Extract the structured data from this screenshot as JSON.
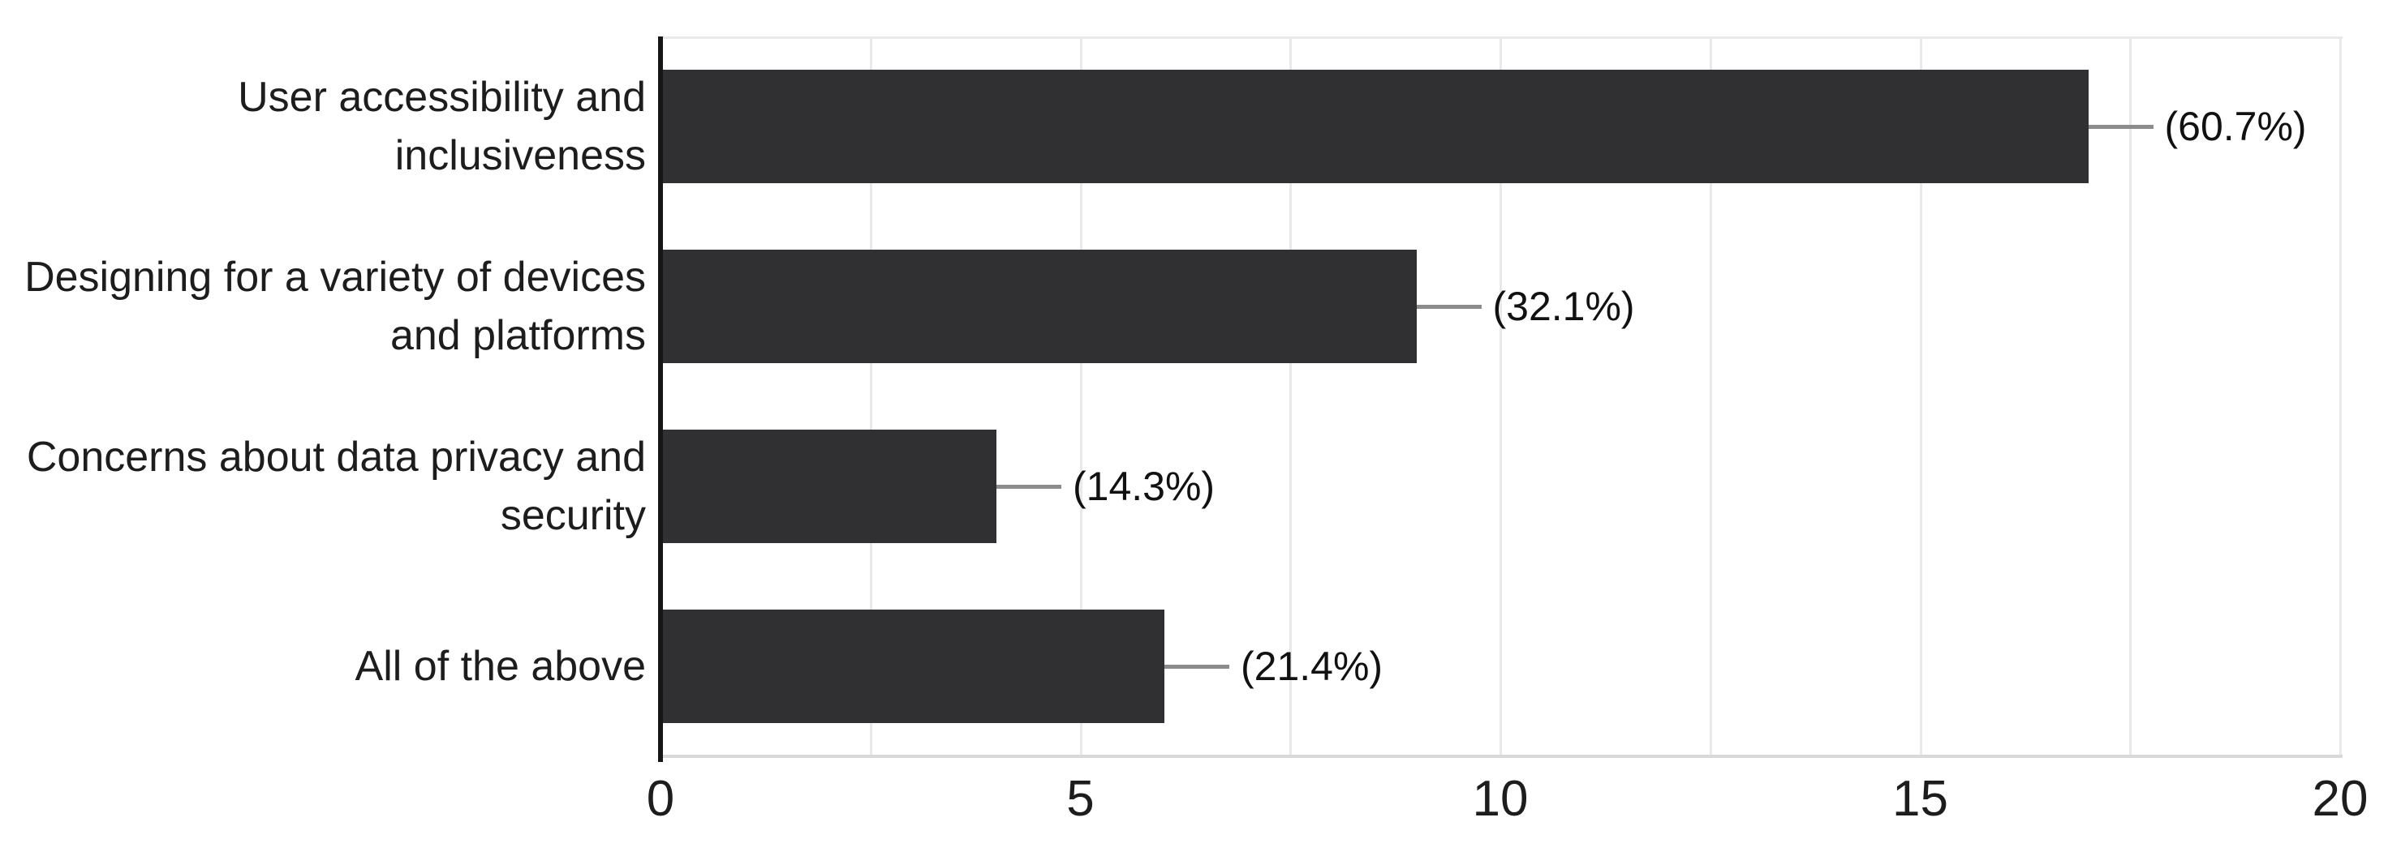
{
  "chart_data": {
    "type": "bar",
    "orientation": "horizontal",
    "categories": [
      "User accessibility and inclusiveness",
      "Designing for a variety of devices and platforms",
      "Concerns about data privacy and security",
      "All of the above"
    ],
    "category_lines": [
      [
        "User accessibility and",
        "inclusiveness"
      ],
      [
        "Designing for a variety of devices",
        "and platforms"
      ],
      [
        "Concerns about data privacy and",
        "security"
      ],
      [
        "All of the above"
      ]
    ],
    "values": [
      17,
      9,
      4,
      6
    ],
    "value_labels": [
      "(60.7%)",
      "(32.1%)",
      "(14.3%)",
      "(21.4%)"
    ],
    "x_ticks": [
      0,
      5,
      10,
      15,
      20
    ],
    "x_tick_labels": [
      "0",
      "5",
      "10",
      "15",
      "20"
    ],
    "xlim": [
      0,
      20
    ],
    "gridline_interval": 2.5,
    "grid": "vertical-only",
    "legend": "none",
    "title": "",
    "colors": {
      "bar": "#303032",
      "gridline": "#e9e9e9",
      "plot_border": "#e9e9e9",
      "plot_bottom_border": "#d9d9d9",
      "axis_line": "#161616",
      "leader_line": "#8c8c8c",
      "category_text": "#1d1d1d",
      "value_text": "#111111",
      "tick_text": "#1d1d1d",
      "background": "#ffffff"
    }
  }
}
